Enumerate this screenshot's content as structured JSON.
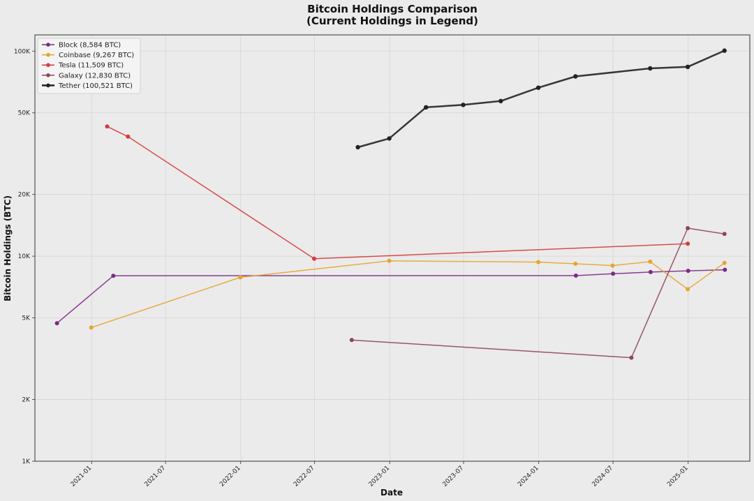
{
  "chart_data": {
    "type": "line",
    "title": "Bitcoin Holdings Comparison",
    "subtitle": "(Current Holdings in Legend)",
    "xlabel": "Date",
    "ylabel": "Bitcoin Holdings (BTC)",
    "y_scale": "log",
    "ylim": [
      1000,
      120000
    ],
    "xlim": [
      "2020-08-15",
      "2025-06-01"
    ],
    "x_ticks": [
      "2021-01",
      "2021-07",
      "2022-01",
      "2022-07",
      "2023-01",
      "2023-07",
      "2024-01",
      "2024-07",
      "2025-01"
    ],
    "y_ticks": [
      {
        "value": 1000,
        "label": "1K"
      },
      {
        "value": 2000,
        "label": "2K"
      },
      {
        "value": 5000,
        "label": "5K"
      },
      {
        "value": 10000,
        "label": "10K"
      },
      {
        "value": 20000,
        "label": "20K"
      },
      {
        "value": 50000,
        "label": "50K"
      },
      {
        "value": 100000,
        "label": "100K"
      }
    ],
    "grid": true,
    "legend_position": "top-left",
    "series": [
      {
        "name": "Block (8,584 BTC)",
        "color": "#7b2a86",
        "line_width": 1.5,
        "points": [
          [
            "2020-10-08",
            4709
          ],
          [
            "2021-02-23",
            8027
          ],
          [
            "2024-04-01",
            8038
          ],
          [
            "2024-07-01",
            8211
          ],
          [
            "2024-10-01",
            8363
          ],
          [
            "2025-01-01",
            8485
          ],
          [
            "2025-04-01",
            8584
          ]
        ]
      },
      {
        "name": "Coinbase (9,267 BTC)",
        "color": "#e6a52e",
        "line_width": 1.5,
        "points": [
          [
            "2020-12-31",
            4487
          ],
          [
            "2021-12-31",
            7880
          ],
          [
            "2022-12-31",
            9480
          ],
          [
            "2023-12-31",
            9360
          ],
          [
            "2024-03-31",
            9181
          ],
          [
            "2024-06-30",
            9000
          ],
          [
            "2024-09-30",
            9400
          ],
          [
            "2024-12-31",
            6900
          ],
          [
            "2025-03-31",
            9267
          ]
        ]
      },
      {
        "name": "Tesla (11,509 BTC)",
        "color": "#d63a3a",
        "line_width": 1.5,
        "points": [
          [
            "2021-02-08",
            42902
          ],
          [
            "2021-03-31",
            38300
          ],
          [
            "2022-06-30",
            9720
          ],
          [
            "2024-12-31",
            11509
          ]
        ]
      },
      {
        "name": "Galaxy (12,830 BTC)",
        "color": "#8f4654",
        "line_width": 1.5,
        "points": [
          [
            "2022-09-30",
            3900
          ],
          [
            "2024-08-15",
            3200
          ],
          [
            "2024-12-31",
            13700
          ],
          [
            "2025-03-31",
            12830
          ]
        ]
      },
      {
        "name": "Tether (100,521 BTC)",
        "color": "#222222",
        "line_width": 2.5,
        "points": [
          [
            "2022-10-15",
            34000
          ],
          [
            "2022-12-31",
            37500
          ],
          [
            "2023-03-31",
            53200
          ],
          [
            "2023-06-30",
            54700
          ],
          [
            "2023-09-30",
            57100
          ],
          [
            "2023-12-31",
            66300
          ],
          [
            "2024-03-31",
            75300
          ],
          [
            "2024-09-30",
            82400
          ],
          [
            "2024-12-31",
            83800
          ],
          [
            "2025-03-31",
            100521
          ]
        ]
      }
    ]
  }
}
